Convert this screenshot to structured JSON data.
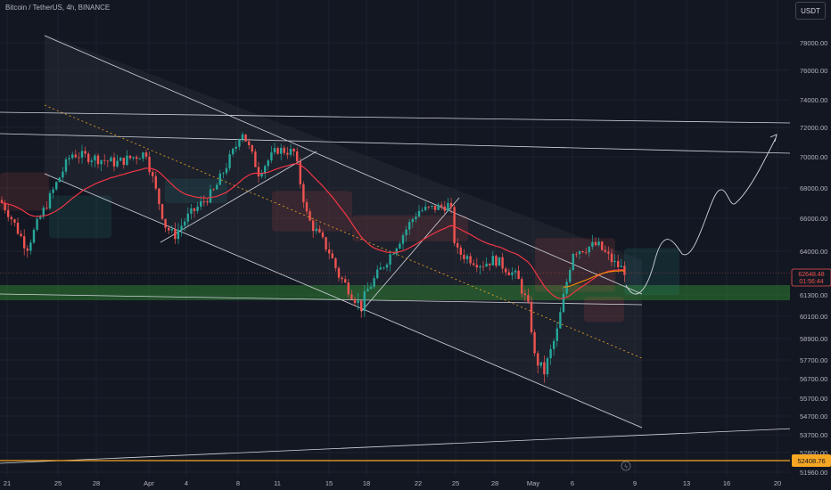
{
  "header": {
    "title": "Bitcoin / TetherUS, 4h, BINANCE",
    "currency_button": "USDT"
  },
  "price_tag": {
    "price": "62648.48",
    "countdown": "01:56:44"
  },
  "level_tag": "52408.76",
  "colors": {
    "background": "#131722",
    "up": "#26a69a",
    "down": "#ef5350",
    "ema": "#f23645",
    "orange_level": "#f5a623",
    "green_zone": "#2e7d32"
  },
  "chart_data": {
    "type": "candlestick",
    "symbol": "Bitcoin / TetherUS",
    "timeframe": "4h",
    "exchange": "BINANCE",
    "x_ticks": [
      "21",
      "25",
      "28",
      "Apr",
      "4",
      "8",
      "11",
      "15",
      "18",
      "22",
      "25",
      "28",
      "May",
      "6",
      "9",
      "13",
      "16",
      "20"
    ],
    "y_ticks": [
      78000,
      76000,
      74000,
      72000,
      70000,
      68000,
      66000,
      64000,
      61300,
      60100,
      58900,
      57700,
      56700,
      55700,
      54700,
      53700,
      52800,
      51960
    ],
    "y_tick_labels": [
      "78000.00",
      "76000.00",
      "74000.00",
      "72000.00",
      "70000.00",
      "68000.00",
      "66000.00",
      "64000.00",
      "61300.00",
      "60100.00",
      "58900.00",
      "57700.00",
      "56700.00",
      "55700.00",
      "54700.00",
      "53700.00",
      "52800.00",
      "51960.00"
    ],
    "last_price": 62648.48,
    "horizontal_level": 52408.76,
    "support_zone": [
      61050,
      61900
    ],
    "approx_closes": [
      {
        "date": "21",
        "close": 66500
      },
      {
        "date": "25",
        "close": 68500
      },
      {
        "date": "28",
        "close": 69900
      },
      {
        "date": "Apr",
        "close": 69500
      },
      {
        "date": "4",
        "close": 66000
      },
      {
        "date": "8",
        "close": 71000
      },
      {
        "date": "11",
        "close": 70500
      },
      {
        "date": "15",
        "close": 64000
      },
      {
        "date": "18",
        "close": 61500
      },
      {
        "date": "22",
        "close": 66500
      },
      {
        "date": "25",
        "close": 64000
      },
      {
        "date": "28",
        "close": 63500
      },
      {
        "date": "May",
        "close": 58000
      },
      {
        "date": "6",
        "close": 64000
      },
      {
        "date": "9",
        "close": 62648
      }
    ]
  }
}
